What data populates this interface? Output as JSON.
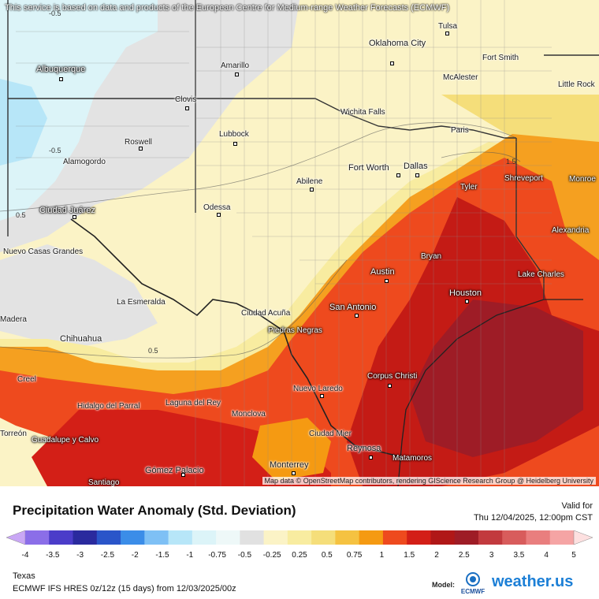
{
  "map": {
    "disclaimer": "This service is based on data and products of the European Centre for Medium-range Weather Forecasts (ECMWF)",
    "attribution": "Map data © OpenStreetMap contributors, rendering GIScience Research Group @ Heidelberg University",
    "cities": [
      {
        "name": "Tulsa"
      },
      {
        "name": "Oklahoma City"
      },
      {
        "name": "Albuquerque"
      },
      {
        "name": "Amarillo"
      },
      {
        "name": "Fort Smith"
      },
      {
        "name": "McAlester"
      },
      {
        "name": "Little Rock"
      },
      {
        "name": "Clovis"
      },
      {
        "name": "Wichita Falls"
      },
      {
        "name": "Lubbock"
      },
      {
        "name": "Roswell"
      },
      {
        "name": "Paris"
      },
      {
        "name": "Alamogordo"
      },
      {
        "name": "Fort Worth"
      },
      {
        "name": "Dallas"
      },
      {
        "name": "Abilene"
      },
      {
        "name": "Tyler"
      },
      {
        "name": "Shreveport"
      },
      {
        "name": "Monroe"
      },
      {
        "name": "Odessa"
      },
      {
        "name": "Ciudad Juárez"
      },
      {
        "name": "Alexandria"
      },
      {
        "name": "Nuevo Casas Grandes"
      },
      {
        "name": "Bryan"
      },
      {
        "name": "Austin"
      },
      {
        "name": "Lake Charles"
      },
      {
        "name": "Houston"
      },
      {
        "name": "La Esmeralda"
      },
      {
        "name": "San Antonio"
      },
      {
        "name": "Ciudad Acuña"
      },
      {
        "name": "Piedras Negras"
      },
      {
        "name": "Chihuahua"
      },
      {
        "name": "Madera"
      },
      {
        "name": "Corpus Christi"
      },
      {
        "name": "Creel"
      },
      {
        "name": "Nuevo Laredo"
      },
      {
        "name": "Hidalgo del Parral"
      },
      {
        "name": "Laguna del Rey"
      },
      {
        "name": "Monclova"
      },
      {
        "name": "Ciudad Mier"
      },
      {
        "name": "Guadalupe y Calvo"
      },
      {
        "name": "Reynosa"
      },
      {
        "name": "Matamoros"
      },
      {
        "name": "Monterrey"
      },
      {
        "name": "Gómez Palacio"
      },
      {
        "name": "Santiago"
      },
      {
        "name": "Torreón"
      }
    ],
    "contour_labels": [
      "-0.5",
      "-0.5",
      "0.5",
      "0.5",
      "1.5"
    ]
  },
  "legend": {
    "title": "Precipitation Water Anomaly (Std. Deviation)",
    "valid_label": "Valid for",
    "valid_time": "Thu 12/04/2025, 12:00pm CST",
    "bins": [
      {
        "color": "#c9a7f5"
      },
      {
        "color": "#8b6ee8"
      },
      {
        "color": "#4b3cc9"
      },
      {
        "color": "#2a2a9e"
      },
      {
        "color": "#2a55c9"
      },
      {
        "color": "#3b8de8"
      },
      {
        "color": "#7ec0f5"
      },
      {
        "color": "#b7e6f8"
      },
      {
        "color": "#dcf4f8"
      },
      {
        "color": "#eef8f8"
      },
      {
        "color": "#e1e1e1"
      },
      {
        "color": "#fbf3c6"
      },
      {
        "color": "#f8eca0"
      },
      {
        "color": "#f5de7a"
      },
      {
        "color": "#f5c241"
      },
      {
        "color": "#f59a12"
      },
      {
        "color": "#ee4a1e"
      },
      {
        "color": "#d31f17"
      },
      {
        "color": "#b01717"
      },
      {
        "color": "#9e1c26"
      },
      {
        "color": "#c23a3e"
      },
      {
        "color": "#d85c5c"
      },
      {
        "color": "#e97e7e"
      },
      {
        "color": "#f5a4a4"
      },
      {
        "color": "#fde0e0"
      }
    ],
    "ticks": [
      "-4",
      "-3.5",
      "-3",
      "-2.5",
      "-2",
      "-1.5",
      "-1",
      "-0.75",
      "-0.5",
      "-0.25",
      "0.25",
      "0.5",
      "0.75",
      "1",
      "1.5",
      "2",
      "2.5",
      "3",
      "3.5",
      "4",
      "5"
    ],
    "region": "Texas",
    "model_run": "ECMWF IFS HRES 0z/12z (15 days) from 12/03/2025/00z",
    "model_label": "Model:",
    "ecmwf_logo_text": "ECMWF",
    "brand": "weather.us"
  }
}
